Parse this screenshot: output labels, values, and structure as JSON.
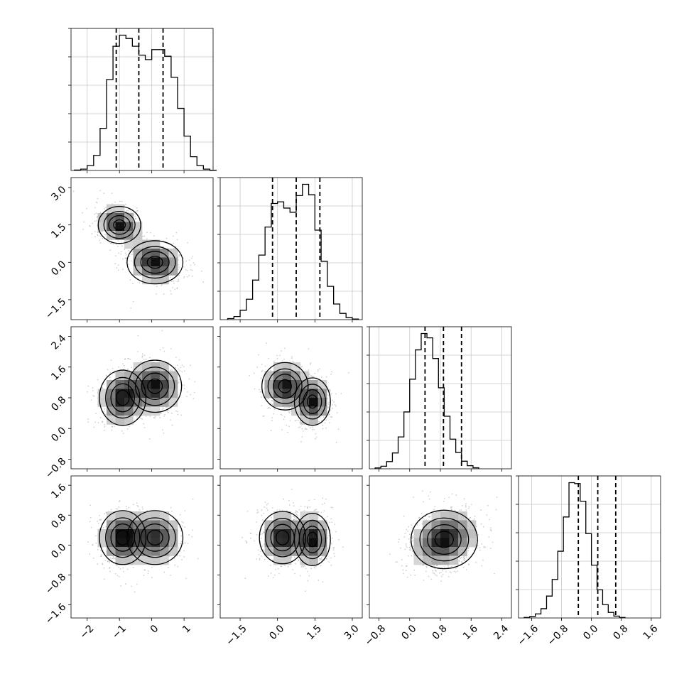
{
  "chart_data": {
    "type": "corner",
    "grid": true,
    "variables": [
      {
        "range": [
          -2.5,
          1.9
        ],
        "ticks": [
          "−2",
          "−1",
          "0",
          "1"
        ],
        "tick_values": [
          -2,
          -1,
          0,
          1
        ],
        "quantiles": [
          -1.1,
          -0.4,
          0.35
        ]
      },
      {
        "range": [
          -2.3,
          3.4
        ],
        "ticks": [
          "−1.5",
          "0.0",
          "1.5",
          "3.0"
        ],
        "tick_values": [
          -1.5,
          0.0,
          1.5,
          3.0
        ],
        "quantiles": [
          -0.2,
          0.75,
          1.7
        ]
      },
      {
        "range": [
          -1.05,
          2.65
        ],
        "ticks": [
          "−0.8",
          "0.0",
          "0.8",
          "1.6",
          "2.4"
        ],
        "tick_values": [
          -0.8,
          0.0,
          0.8,
          1.6,
          2.4
        ],
        "quantiles": [
          0.4,
          0.88,
          1.35
        ]
      },
      {
        "range": [
          -1.95,
          1.85
        ],
        "ticks": [
          "−1.6",
          "−0.8",
          "0.0",
          "0.8",
          "1.6"
        ],
        "tick_values": [
          -1.6,
          -0.8,
          0.0,
          0.8,
          1.6
        ],
        "quantiles": [
          -0.35,
          0.17,
          0.65
        ]
      }
    ],
    "histograms": [
      {
        "variable": 0,
        "bin_start": -2.4,
        "bin_width": 0.2,
        "counts": [
          2,
          6,
          22,
          68,
          190,
          410,
          560,
          610,
          595,
          560,
          520,
          500,
          545,
          545,
          515,
          420,
          280,
          155,
          62,
          22,
          6,
          1
        ]
      },
      {
        "variable": 1,
        "bin_start": -2.0,
        "bin_width": 0.25,
        "counts": [
          5,
          15,
          45,
          98,
          190,
          310,
          445,
          558,
          566,
          536,
          516,
          596,
          650,
          600,
          430,
          280,
          160,
          75,
          30,
          10,
          3
        ]
      },
      {
        "variable": 2,
        "bin_start": -0.9,
        "bin_width": 0.15,
        "counts": [
          5,
          15,
          42,
          92,
          185,
          330,
          520,
          690,
          785,
          760,
          640,
          470,
          305,
          172,
          95,
          44,
          18,
          6
        ]
      },
      {
        "variable": 3,
        "bin_start": -1.8,
        "bin_width": 0.15,
        "counts": [
          3,
          8,
          22,
          50,
          118,
          208,
          360,
          545,
          730,
          725,
          630,
          455,
          285,
          152,
          72,
          30,
          10,
          3
        ]
      }
    ],
    "density_pairs": [
      {
        "x": 0,
        "y": 1,
        "modes": [
          {
            "x": -1.0,
            "y": 1.5,
            "w": 1.0,
            "sx": 0.32,
            "sy": 0.36,
            "rho": -0.3
          },
          {
            "x": 0.1,
            "y": 0.0,
            "w": 1.0,
            "sx": 0.42,
            "sy": 0.42,
            "rho": -0.2
          }
        ]
      },
      {
        "x": 0,
        "y": 2,
        "modes": [
          {
            "x": -0.9,
            "y": 0.8,
            "w": 1.0,
            "sx": 0.35,
            "sy": 0.35,
            "rho": 0.1
          },
          {
            "x": 0.1,
            "y": 1.1,
            "w": 1.0,
            "sx": 0.4,
            "sy": 0.33,
            "rho": 0.0
          }
        ]
      },
      {
        "x": 1,
        "y": 2,
        "modes": [
          {
            "x": 0.3,
            "y": 1.1,
            "w": 1.0,
            "sx": 0.45,
            "sy": 0.3,
            "rho": 0.0
          },
          {
            "x": 1.4,
            "y": 0.7,
            "w": 1.0,
            "sx": 0.35,
            "sy": 0.3,
            "rho": 0.0
          }
        ]
      },
      {
        "x": 0,
        "y": 3,
        "modes": [
          {
            "x": -0.9,
            "y": 0.2,
            "w": 1.0,
            "sx": 0.35,
            "sy": 0.35,
            "rho": 0.0
          },
          {
            "x": 0.1,
            "y": 0.2,
            "w": 0.85,
            "sx": 0.42,
            "sy": 0.35,
            "rho": 0.0
          }
        ]
      },
      {
        "x": 1,
        "y": 3,
        "modes": [
          {
            "x": 0.2,
            "y": 0.2,
            "w": 1.0,
            "sx": 0.45,
            "sy": 0.34,
            "rho": 0.0
          },
          {
            "x": 1.4,
            "y": 0.15,
            "w": 1.0,
            "sx": 0.35,
            "sy": 0.34,
            "rho": 0.0
          }
        ]
      },
      {
        "x": 2,
        "y": 3,
        "modes": [
          {
            "x": 0.9,
            "y": 0.15,
            "w": 1.0,
            "sx": 0.42,
            "sy": 0.38,
            "rho": 0.25
          }
        ]
      }
    ]
  }
}
